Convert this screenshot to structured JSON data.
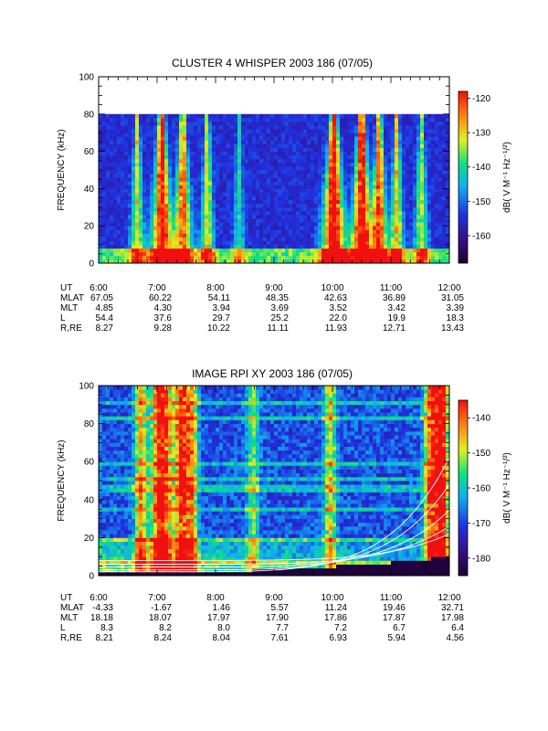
{
  "chart_data": [
    {
      "type": "heatmap",
      "title": "CLUSTER 4 WHISPER 2003 186 (07/05)",
      "ylabel": "FREQUENCY (kHz)",
      "ylim": [
        0,
        100
      ],
      "yticks": [
        "0",
        "20",
        "40",
        "60",
        "80",
        "100"
      ],
      "xlim": [
        "6:00",
        "12:00"
      ],
      "colorbar": {
        "label": "dB( V M⁻¹ Hz⁻¹/²)",
        "range": [
          -168,
          -118
        ],
        "ticks": [
          "-120",
          "-130",
          "-140",
          "-150",
          "-160"
        ]
      },
      "upper_cutoff_khz": 80,
      "ephemeris": {
        "rows": [
          "UT",
          "MLAT",
          "MLT",
          "L",
          "R,RE"
        ],
        "columns": [
          [
            "6:00",
            "67.05",
            "4.85",
            "54.4",
            "8.27"
          ],
          [
            "7:00",
            "60.22",
            "4.30",
            "37.6",
            "9.28"
          ],
          [
            "8:00",
            "54.11",
            "3.94",
            "29.7",
            "10.22"
          ],
          [
            "9:00",
            "48.35",
            "3.69",
            "25.2",
            "11.11"
          ],
          [
            "10:00",
            "42.63",
            "3.52",
            "22.0",
            "11.93"
          ],
          [
            "11:00",
            "36.89",
            "3.42",
            "19.9",
            "12.71"
          ],
          [
            "12:00",
            "31.05",
            "3.39",
            "18.3",
            "13.43"
          ]
        ]
      }
    },
    {
      "type": "heatmap",
      "title": "IMAGE RPI XY 2003 186 (07/05)",
      "ylabel": "FREQUENCY (kHz)",
      "ylim": [
        0,
        100
      ],
      "yticks": [
        "0",
        "20",
        "40",
        "60",
        "80",
        "100"
      ],
      "xlim": [
        "6:00",
        "12:00"
      ],
      "colorbar": {
        "label": "dB( V M⁻¹ Hz⁻¹/²)",
        "range": [
          -185,
          -135
        ],
        "ticks": [
          "-140",
          "-150",
          "-160",
          "-170",
          "-180"
        ]
      },
      "ephemeris": {
        "rows": [
          "UT",
          "MLAT",
          "MLT",
          "L",
          "R,RE"
        ],
        "columns": [
          [
            "6:00",
            "-4.33",
            "18.18",
            "8.3",
            "8.21"
          ],
          [
            "7:00",
            "-1.67",
            "18.07",
            "8.2",
            "8.24"
          ],
          [
            "8:00",
            "1.46",
            "17.97",
            "8.0",
            "8.04"
          ],
          [
            "9:00",
            "5.57",
            "17.90",
            "7.7",
            "7.61"
          ],
          [
            "10:00",
            "11.24",
            "17.86",
            "7.2",
            "6.93"
          ],
          [
            "11:00",
            "19.46",
            "17.87",
            "6.7",
            "5.94"
          ],
          [
            "12:00",
            "32.71",
            "17.98",
            "6.4",
            "4.56"
          ]
        ]
      }
    }
  ]
}
